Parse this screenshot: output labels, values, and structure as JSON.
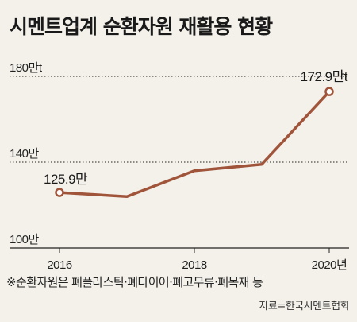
{
  "title": "시멘트업계 순환자원 재활용 현황",
  "note": "※순환자원은 폐플라스틱·폐타이어·폐고무류·폐목재 등",
  "source": "자료=한국시멘트협회",
  "colors": {
    "line": "#a0553b",
    "background": "#f4f1ea",
    "grid": "#222222"
  },
  "chart_data": {
    "type": "line",
    "x": [
      2016,
      2017,
      2018,
      2019,
      2020
    ],
    "x_tick_labels": [
      {
        "x": 2016,
        "label": "2016"
      },
      {
        "x": 2018,
        "label": "2018"
      },
      {
        "x": 2020,
        "label": "2020년"
      }
    ],
    "series": [
      {
        "values": [
          125.9,
          124,
          136,
          139,
          172.9
        ]
      }
    ],
    "y_tick_labels": [
      {
        "y": 180,
        "label": "180만t"
      },
      {
        "y": 140,
        "label": "140만"
      },
      {
        "y": 100,
        "label": "100만"
      }
    ],
    "ylim": [
      100,
      180
    ],
    "grid": "horizontal dotted",
    "annotations": [
      {
        "x": 2016,
        "y": 125.9,
        "label": "125.9만"
      },
      {
        "x": 2020,
        "y": 172.9,
        "label": "172.9만t"
      }
    ]
  }
}
